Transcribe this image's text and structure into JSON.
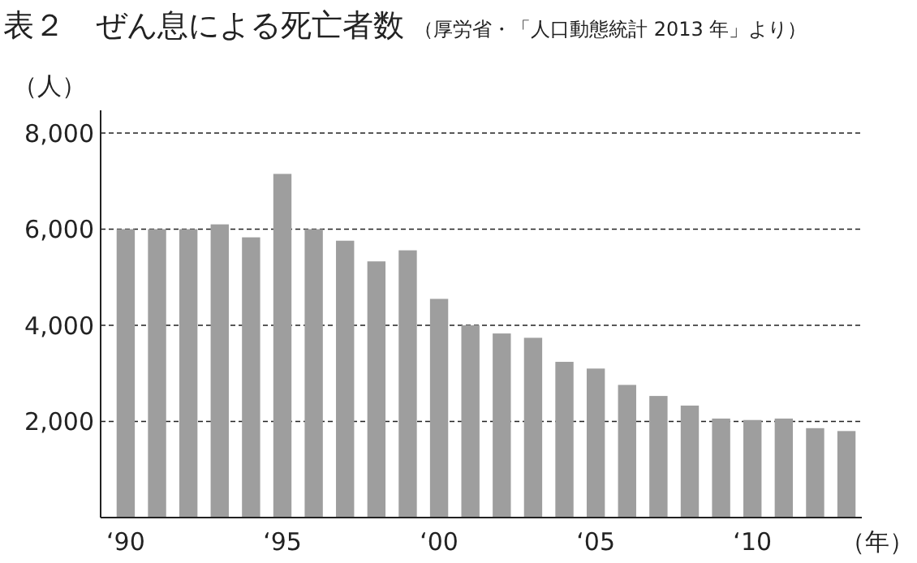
{
  "chart_data": {
    "type": "bar",
    "title": "表２　ぜん息による死亡者数",
    "subtitle": "（厚労省・「人口動態統計 2013 年」より）",
    "ylabel": "（人）",
    "xlabel": "（年）",
    "categories": [
      "‘90",
      null,
      null,
      null,
      null,
      "‘95",
      null,
      null,
      null,
      null,
      "‘00",
      null,
      null,
      null,
      null,
      "‘05",
      null,
      null,
      null,
      null,
      "‘10",
      null,
      null,
      null
    ],
    "values": [
      6000,
      6000,
      6000,
      6100,
      5830,
      7150,
      6000,
      5760,
      5330,
      5560,
      4550,
      4000,
      3830,
      3740,
      3240,
      3100,
      2760,
      2530,
      2330,
      2060,
      2030,
      2060,
      1860,
      1800
    ],
    "color": "#9e9e9e",
    "ylim": [
      0,
      8000
    ],
    "yticks": [
      {
        "value": 2000,
        "label": "2,000"
      },
      {
        "value": 4000,
        "label": "4,000"
      },
      {
        "value": 6000,
        "label": "6,000"
      },
      {
        "value": 8000,
        "label": "8,000"
      }
    ],
    "grid": "y"
  }
}
